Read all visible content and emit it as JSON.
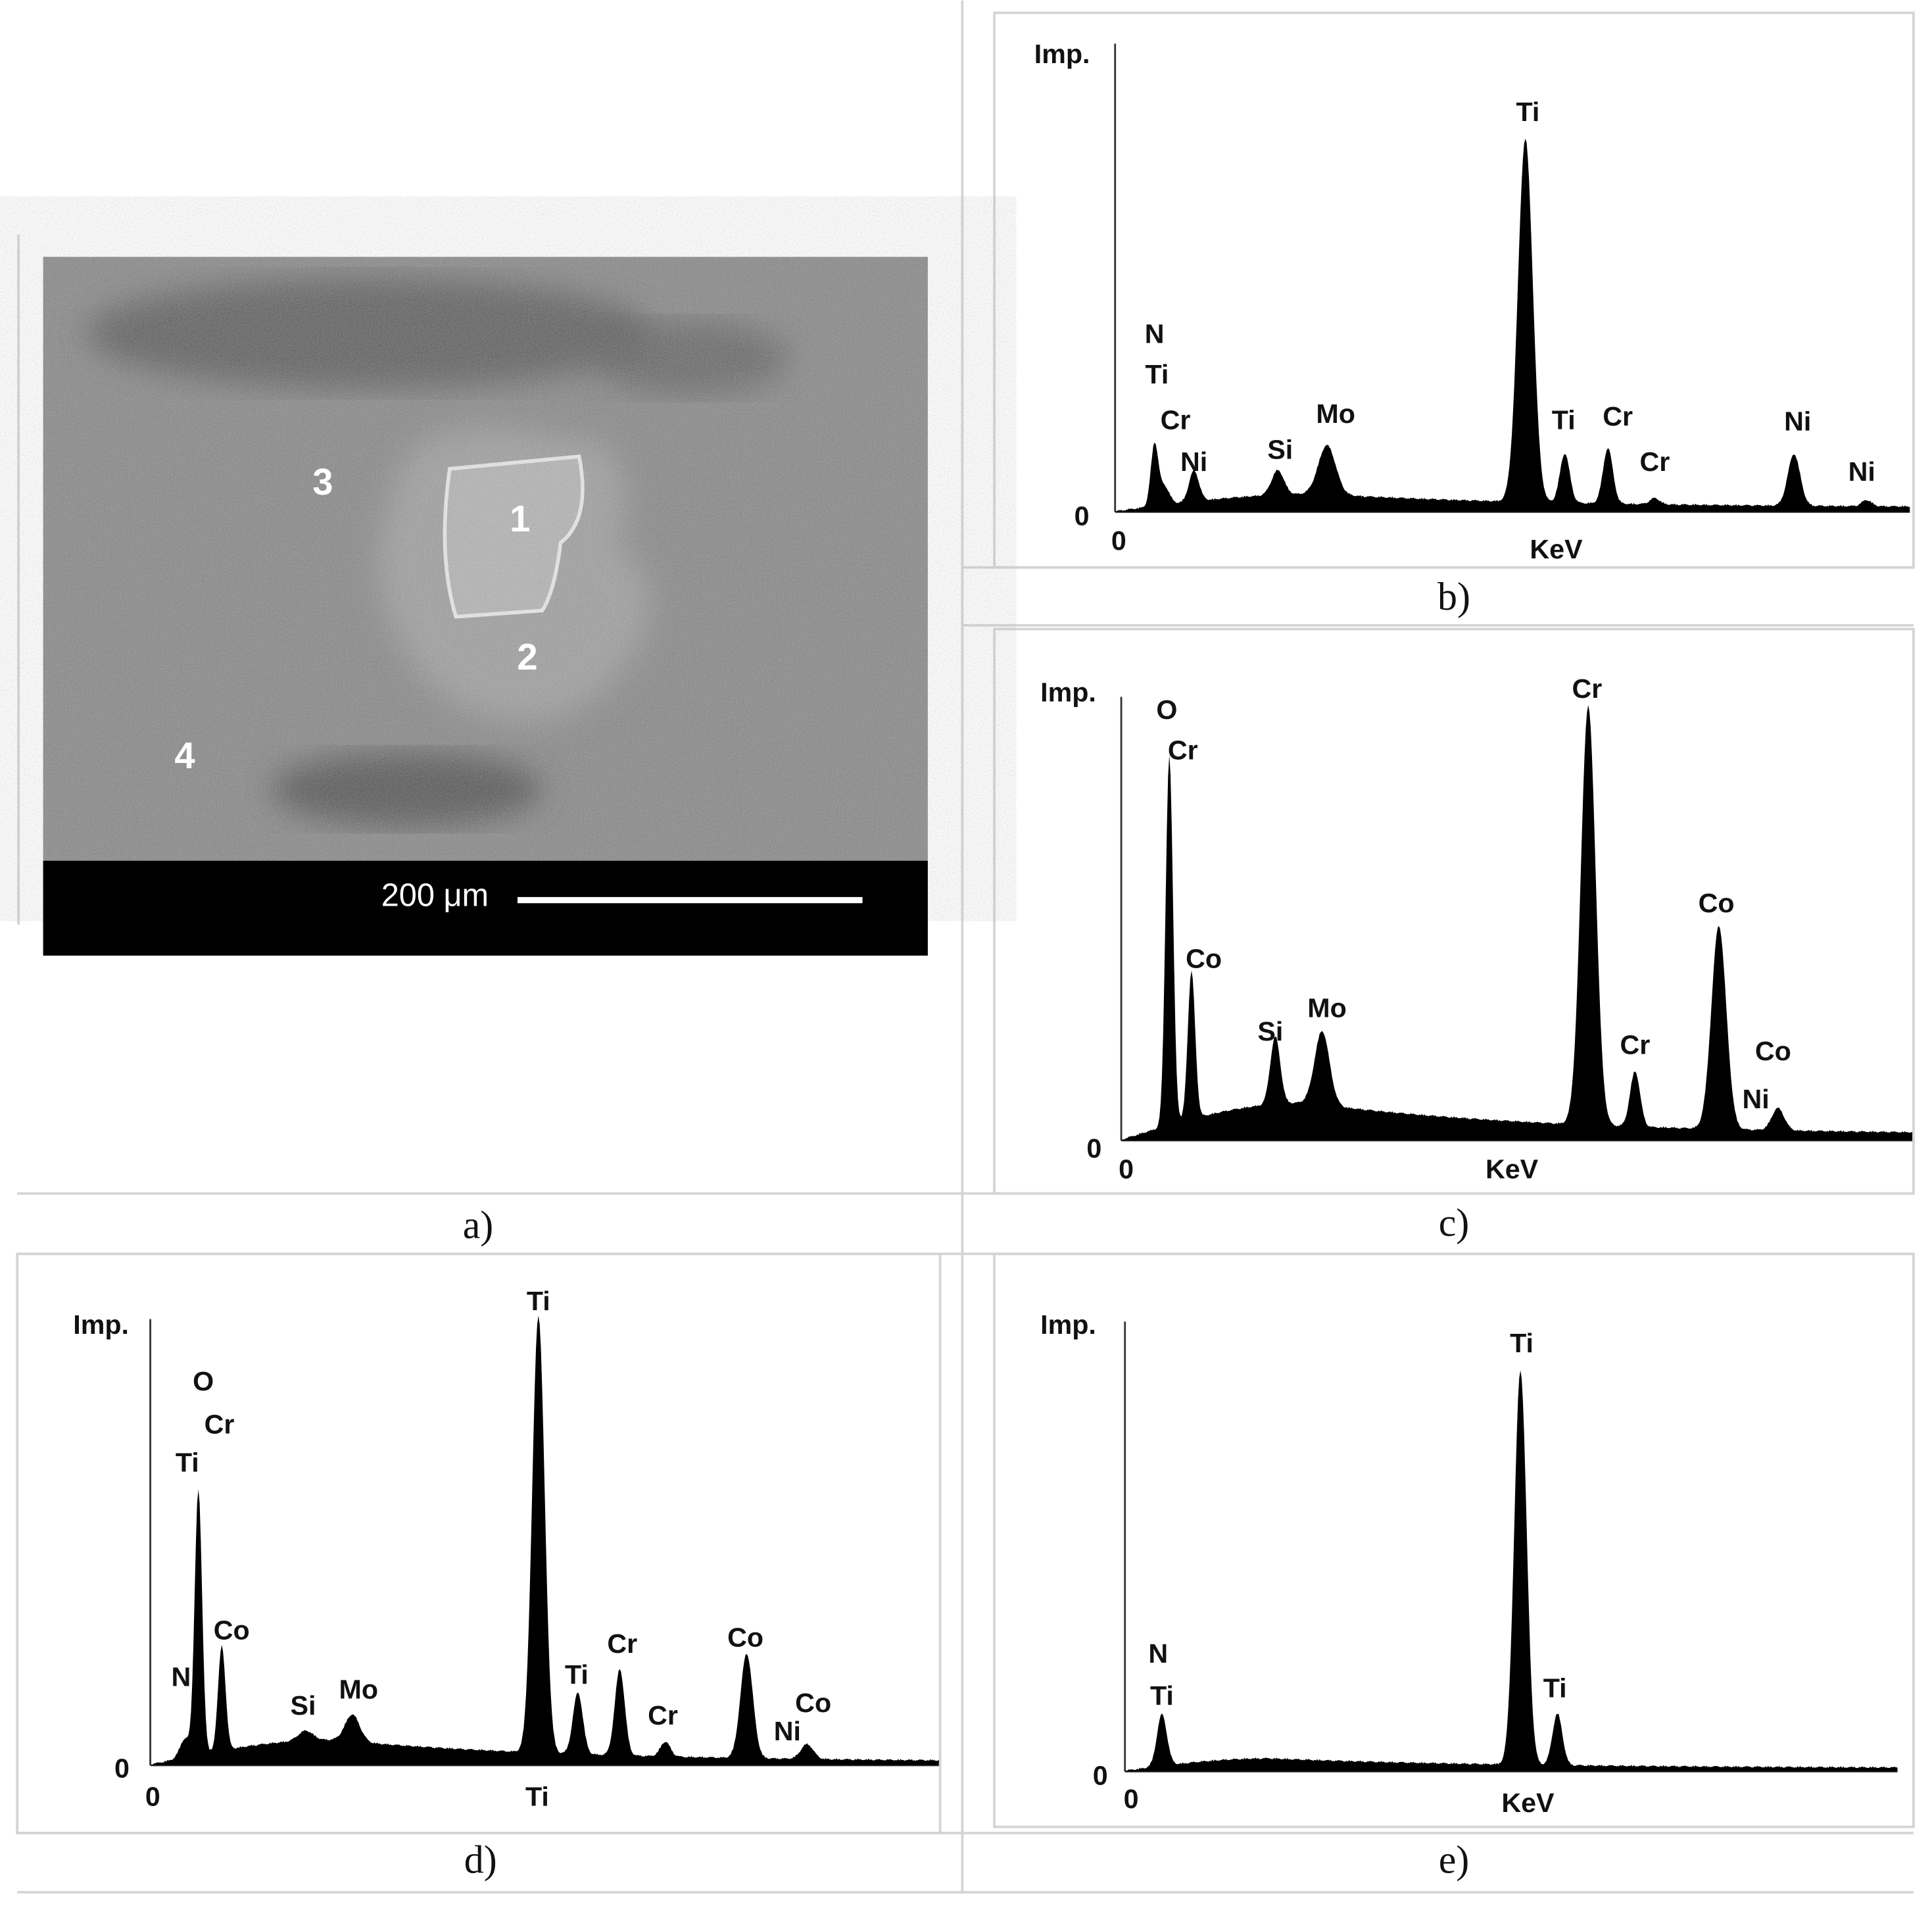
{
  "panels": [
    {
      "caption": "a)",
      "image": {
        "region_labels": [
          "1",
          "2",
          "3",
          "4"
        ],
        "scale_bar": "200 μm"
      }
    },
    {
      "caption": "b)",
      "y_label": "Imp.",
      "y_zero": "0",
      "x_zero": "0",
      "x_label": "KeV",
      "peak_labels": [
        "N",
        "Ti",
        "Cr",
        "Ni",
        "Si",
        "Mo",
        "Ti",
        "Ti",
        "Cr",
        "Cr",
        "Ni",
        "Ni"
      ]
    },
    {
      "caption": "c)",
      "y_label": "Imp.",
      "y_zero": "0",
      "x_zero": "0",
      "x_label": "KeV",
      "peak_labels": [
        "O",
        "Cr",
        "Co",
        "Si",
        "Mo",
        "Cr",
        "Cr",
        "Co",
        "Co",
        "Ni"
      ]
    },
    {
      "caption": "d)",
      "y_label": "Imp.",
      "y_zero": "0",
      "x_zero": "0",
      "x_label": "Ti",
      "peak_labels": [
        "O",
        "Cr",
        "Ti",
        "Co",
        "N",
        "Si",
        "Mo",
        "Ti",
        "Ti",
        "Cr",
        "Cr",
        "Co",
        "Ni",
        "Co"
      ]
    },
    {
      "caption": "e)",
      "y_label": "Imp.",
      "y_zero": "0",
      "x_zero": "0",
      "x_label": "KeV",
      "peak_labels": [
        "N",
        "Ti",
        "Ti",
        "Ti"
      ]
    }
  ]
}
